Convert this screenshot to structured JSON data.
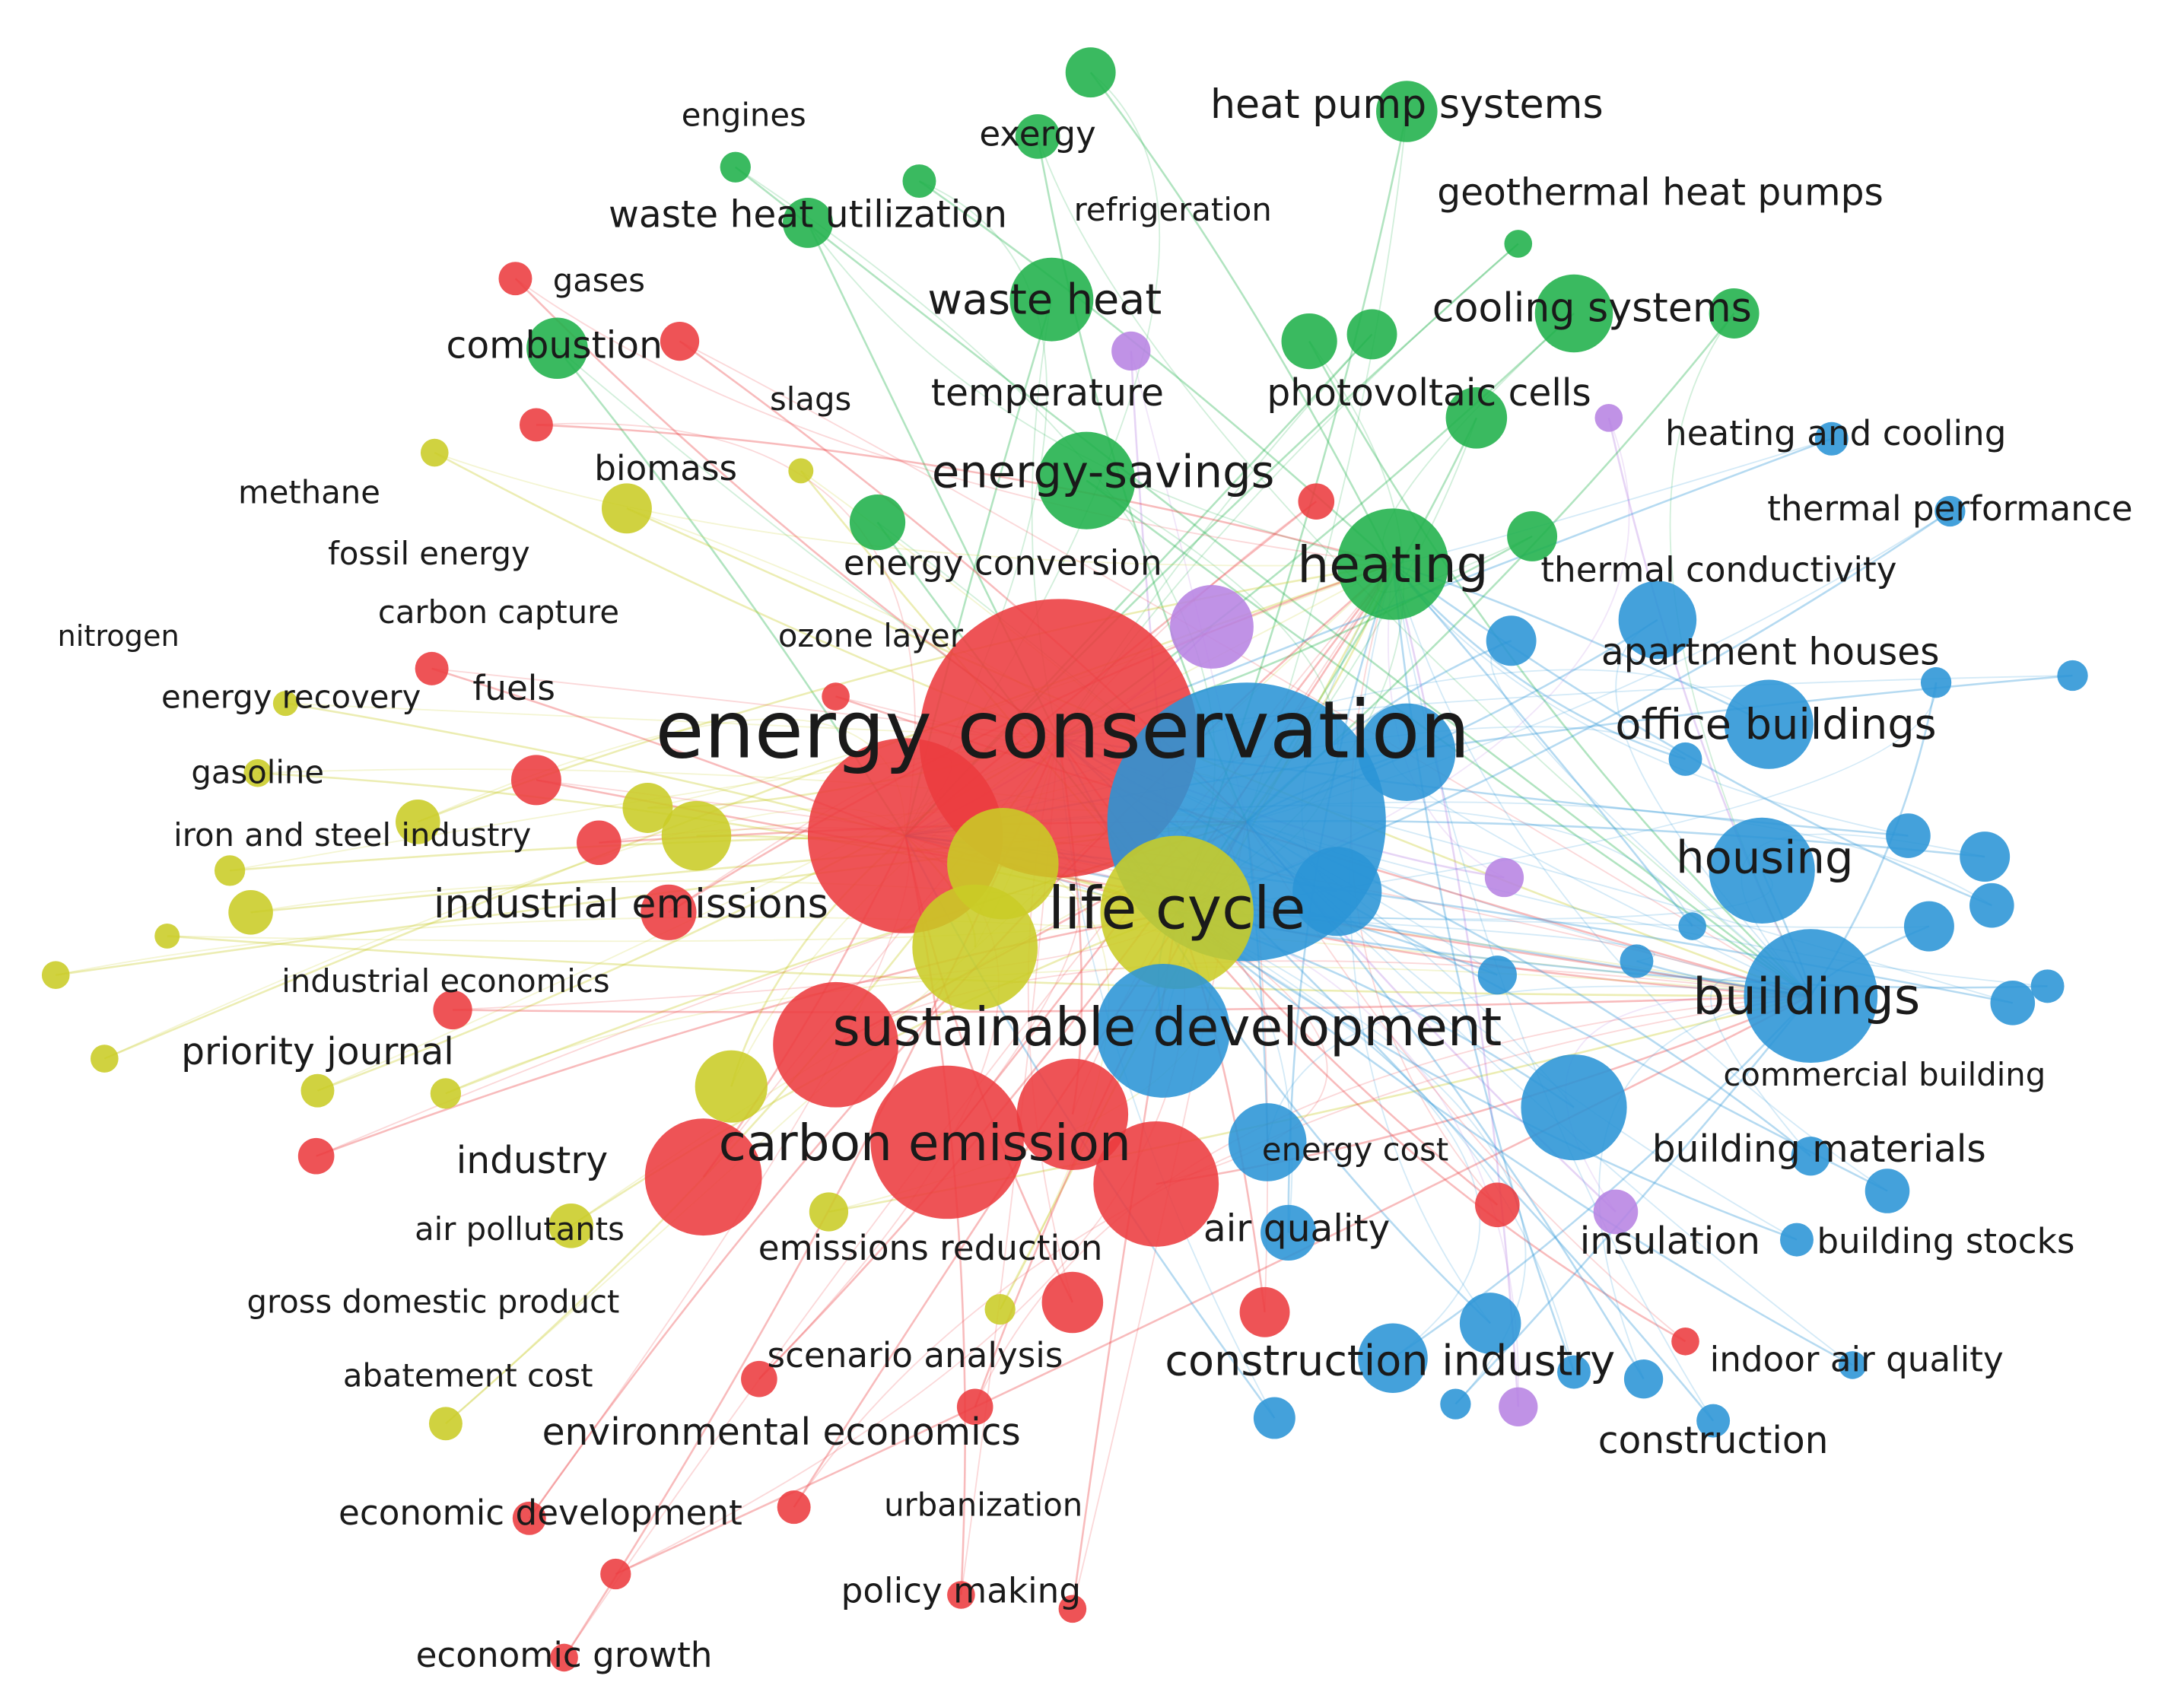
{
  "labels": [
    "engines",
    "exergy",
    "heat pump systems",
    "waste heat utilization",
    "refrigeration",
    "geothermal heat pumps",
    "gases",
    "waste heat",
    "cooling systems",
    "combustion",
    "slags",
    "temperature",
    "photovoltaic cells",
    "heating and cooling",
    "methane",
    "biomass",
    "energy-savings",
    "thermal performance",
    "fossil energy",
    "energy conversion",
    "heating",
    "thermal conductivity",
    "carbon capture",
    "nitrogen",
    "ozone layer",
    "apartment houses",
    "energy recovery",
    "fuels",
    "energy conservation",
    "office buildings",
    "gasoline",
    "iron and steel industry",
    "housing",
    "industrial emissions",
    "life cycle",
    "industrial economics",
    "buildings",
    "sustainable development",
    "priority journal",
    "commercial building",
    "carbon emission",
    "energy cost",
    "building materials",
    "industry",
    "air pollutants",
    "air quality",
    "emissions reduction",
    "insulation",
    "building stocks",
    "gross domestic product",
    "scenario analysis",
    "construction industry",
    "indoor air quality",
    "abatement cost",
    "environmental economics",
    "construction",
    "economic development",
    "urbanization",
    "policy making",
    "economic growth"
  ]
}
